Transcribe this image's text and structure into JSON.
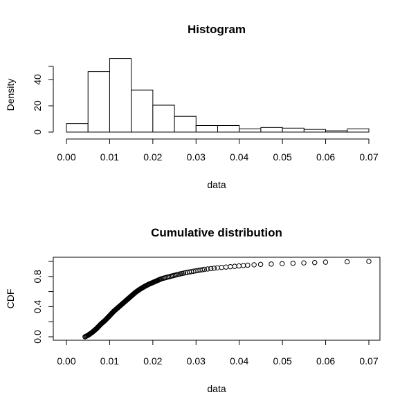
{
  "chart_data": [
    {
      "type": "bar",
      "title": "Histogram",
      "xlabel": "data",
      "ylabel": "Density",
      "bin_edges": [
        0.0,
        0.005,
        0.01,
        0.015,
        0.02,
        0.025,
        0.03,
        0.035,
        0.04,
        0.045,
        0.05,
        0.055,
        0.06,
        0.065,
        0.07
      ],
      "values": [
        6.5,
        46,
        56,
        32,
        20.5,
        12,
        5,
        5,
        2.5,
        3.5,
        3,
        2,
        1,
        2.5
      ],
      "xlim": [
        0.0,
        0.07
      ],
      "ylim": [
        0,
        50
      ],
      "x_ticks": [
        "0.00",
        "0.01",
        "0.02",
        "0.03",
        "0.04",
        "0.05",
        "0.06",
        "0.07"
      ],
      "x_tick_values": [
        0.0,
        0.01,
        0.02,
        0.03,
        0.04,
        0.05,
        0.06,
        0.07
      ],
      "y_ticks": [
        "0",
        "20",
        "40"
      ],
      "y_tick_values": [
        0,
        20,
        40
      ],
      "grid": false,
      "box": false
    },
    {
      "type": "scatter",
      "title": "Cumulative distribution",
      "xlabel": "data",
      "ylabel": "CDF",
      "marker": "open-circle",
      "xlim": [
        0.0,
        0.07
      ],
      "ylim": [
        0.0,
        1.0
      ],
      "x_ticks": [
        "0.00",
        "0.01",
        "0.02",
        "0.03",
        "0.04",
        "0.05",
        "0.06",
        "0.07"
      ],
      "x_tick_values": [
        0.0,
        0.01,
        0.02,
        0.03,
        0.04,
        0.05,
        0.06,
        0.07
      ],
      "y_ticks": [
        "0.0",
        "0.4",
        "0.8"
      ],
      "y_tick_values": [
        0.0,
        0.4,
        0.8
      ],
      "grid": false,
      "box": true,
      "cdf_shape": {
        "n_points": 200,
        "knots_x": [
          0.0043,
          0.005,
          0.006,
          0.007,
          0.008,
          0.009,
          0.01,
          0.011,
          0.012,
          0.013,
          0.014,
          0.015,
          0.016,
          0.017,
          0.018,
          0.019,
          0.02,
          0.022,
          0.024,
          0.026,
          0.028,
          0.03,
          0.032,
          0.035,
          0.038,
          0.04,
          0.042,
          0.045,
          0.05,
          0.055,
          0.06,
          0.065,
          0.07
        ],
        "knots_y": [
          0.0,
          0.02,
          0.06,
          0.11,
          0.17,
          0.22,
          0.28,
          0.34,
          0.39,
          0.44,
          0.49,
          0.54,
          0.59,
          0.63,
          0.665,
          0.695,
          0.72,
          0.77,
          0.8,
          0.83,
          0.855,
          0.875,
          0.895,
          0.915,
          0.93,
          0.94,
          0.95,
          0.96,
          0.97,
          0.98,
          0.99,
          0.995,
          1.0
        ]
      }
    }
  ]
}
